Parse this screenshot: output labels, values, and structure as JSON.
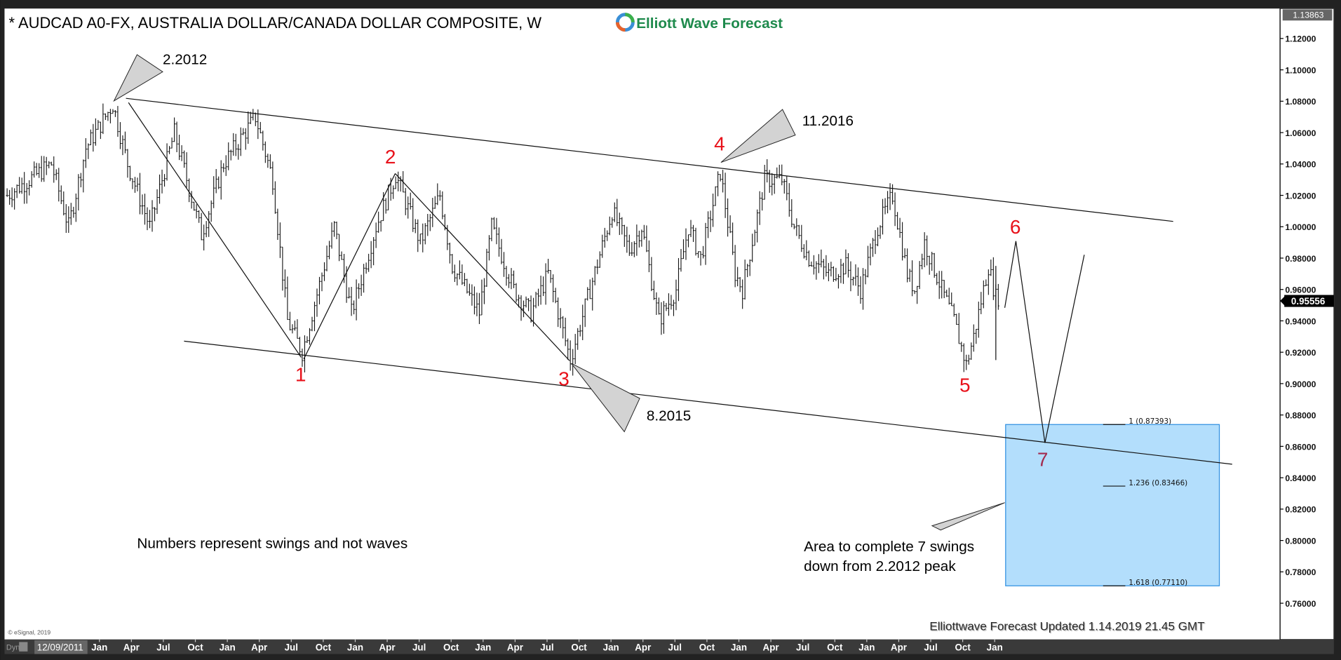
{
  "header": {
    "title": "* AUDCAD A0-FX, AUSTRALIA DOLLAR/CANADA DOLLAR COMPOSITE, W",
    "logo_text": "Elliott Wave Forecast",
    "logo_color": "#1e8a4c"
  },
  "footer": {
    "copyright": "© eSignal, 2019",
    "dyn": "Dyn",
    "start_date": "12/09/2011",
    "updated": "Elliottwave Forecast Updated 1.14.2019 21.45 GMT"
  },
  "chart_data": {
    "type": "ohlc-weekly",
    "symbol": "AUDCAD",
    "ylim": [
      0.75,
      1.13863
    ],
    "y_ticks": [
      1.12,
      1.1,
      1.08,
      1.06,
      1.04,
      1.02,
      1.0,
      0.98,
      0.96,
      0.94,
      0.92,
      0.9,
      0.88,
      0.86,
      0.84,
      0.82,
      0.8,
      0.78,
      0.76
    ],
    "top_price": "1.13863",
    "last_price": "0.95556",
    "x_tick_labels": [
      "Jan",
      "Apr",
      "Jul",
      "Oct",
      "Jan",
      "Apr",
      "Jul",
      "Oct",
      "Jan",
      "Apr",
      "Jul",
      "Oct",
      "Jan",
      "Apr",
      "Jul",
      "Oct",
      "Jan",
      "Apr",
      "Jul",
      "Oct",
      "Jan",
      "Apr",
      "Jul",
      "Oct",
      "Jan",
      "Apr",
      "Jul",
      "Oct",
      "Jan"
    ],
    "price_path_week_price": [
      [
        0,
        1.02
      ],
      [
        18,
        1.04
      ],
      [
        25,
        1.0
      ],
      [
        32,
        1.05
      ],
      [
        43,
        1.078
      ],
      [
        49,
        1.04
      ],
      [
        58,
        1.0
      ],
      [
        68,
        1.06
      ],
      [
        79,
        0.995
      ],
      [
        88,
        1.04
      ],
      [
        101,
        1.07
      ],
      [
        108,
        1.03
      ],
      [
        114,
        0.94
      ],
      [
        120,
        0.92
      ],
      [
        133,
        1.0
      ],
      [
        140,
        0.945
      ],
      [
        150,
        1.0
      ],
      [
        158,
        1.033
      ],
      [
        168,
        0.99
      ],
      [
        176,
        1.02
      ],
      [
        181,
        0.975
      ],
      [
        192,
        0.945
      ],
      [
        197,
        1.0
      ],
      [
        206,
        0.96
      ],
      [
        213,
        0.945
      ],
      [
        220,
        0.97
      ],
      [
        229,
        0.915
      ],
      [
        237,
        0.96
      ],
      [
        246,
        1.01
      ],
      [
        253,
        0.985
      ],
      [
        258,
        1.0
      ],
      [
        265,
        0.94
      ],
      [
        272,
        0.96
      ],
      [
        277,
        1.0
      ],
      [
        282,
        0.98
      ],
      [
        290,
        1.035
      ],
      [
        296,
        0.97
      ],
      [
        299,
        0.96
      ],
      [
        308,
        1.03
      ],
      [
        315,
        1.03
      ],
      [
        320,
        1.0
      ],
      [
        326,
        0.98
      ],
      [
        334,
        0.97
      ],
      [
        341,
        0.975
      ],
      [
        347,
        0.96
      ],
      [
        354,
        1.0
      ],
      [
        360,
        1.02
      ],
      [
        366,
        0.97
      ],
      [
        369,
        0.96
      ],
      [
        373,
        0.99
      ],
      [
        380,
        0.96
      ],
      [
        385,
        0.94
      ],
      [
        390,
        0.912
      ],
      [
        393,
        0.93
      ],
      [
        399,
        0.975
      ],
      [
        402,
        0.955
      ],
      [
        404,
        0.956
      ]
    ],
    "swings": [
      {
        "label": "1",
        "price": 0.918
      },
      {
        "label": "2",
        "price": 1.034
      },
      {
        "label": "3",
        "price": 0.915
      },
      {
        "label": "4",
        "price": 1.039
      },
      {
        "label": "5",
        "price": 0.91
      },
      {
        "label": "6",
        "price": 0.991
      },
      {
        "label": "7",
        "price": 0.862
      }
    ],
    "callouts": [
      "2.2012",
      "11.2016",
      "8.2015"
    ],
    "fib_levels": [
      {
        "ratio": "1",
        "value": 0.87393,
        "label": "1 (0.87393)"
      },
      {
        "ratio": "1.236",
        "value": 0.83466,
        "label": "1.236 (0.83466)"
      },
      {
        "ratio": "1.618",
        "value": 0.7711,
        "label": "1.618 (0.77110)"
      }
    ],
    "annotations": {
      "note": "Numbers represent swings and not waves",
      "area_line1": "Area to complete 7 swings",
      "area_line2": "down from 2.2012 peak"
    },
    "colors": {
      "swing": "#e8111a",
      "swing7": "#a32b4f",
      "box": "#b3defc",
      "box_border": "#2d8ee0"
    }
  }
}
